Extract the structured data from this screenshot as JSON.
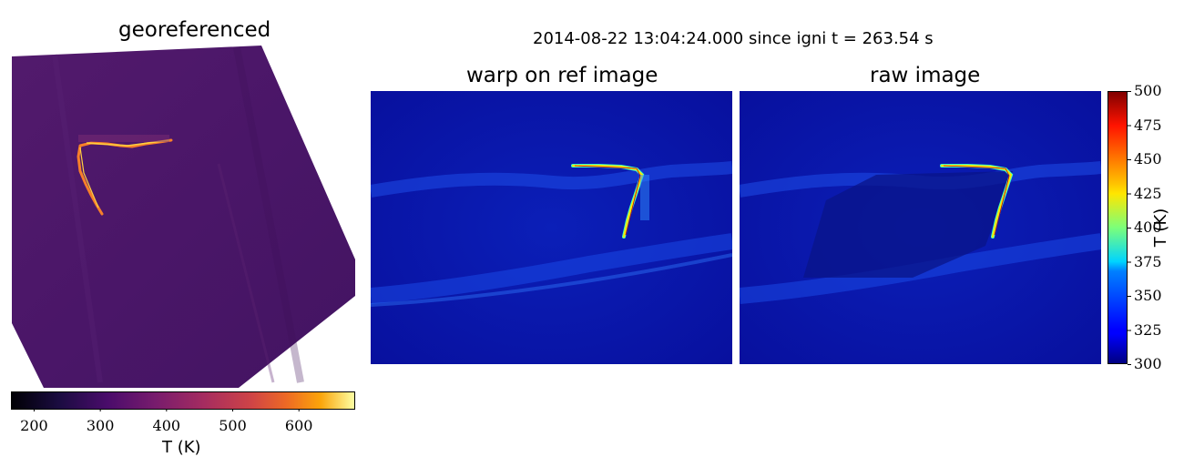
{
  "figure": {
    "suptitle": "2014-08-22 13:04:24.000 since igni t = 263.54 s"
  },
  "panels": {
    "georeferenced": {
      "title": "georeferenced",
      "colormap": "inferno",
      "colorbar": {
        "label": "T (K)",
        "orientation": "horizontal",
        "range": [
          165,
          685
        ],
        "ticks": [
          "200",
          "300",
          "400",
          "500",
          "600"
        ],
        "tick_values": [
          200,
          300,
          400,
          500,
          600
        ]
      }
    },
    "warp": {
      "title": "warp on ref image",
      "colormap": "jet"
    },
    "raw": {
      "title": "raw image",
      "colormap": "jet"
    },
    "jet_colorbar": {
      "label": "T (K)",
      "orientation": "vertical",
      "range": [
        300,
        500
      ],
      "ticks": [
        "500",
        "475",
        "450",
        "425",
        "400",
        "375",
        "350",
        "325",
        "300"
      ],
      "tick_values": [
        500,
        475,
        450,
        425,
        400,
        375,
        350,
        325,
        300
      ]
    }
  },
  "colors": {
    "inferno_bg": "#4a1668",
    "jet_bg": "#0a1ab4",
    "fire_front": "#ffc23a",
    "jet_hot": "#fff000"
  }
}
